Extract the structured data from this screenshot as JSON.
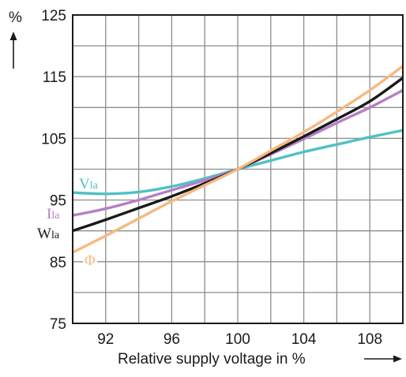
{
  "chart_data": {
    "type": "line",
    "xlabel": "Relative supply voltage in %",
    "ylabel": "%",
    "xlim": [
      90,
      110
    ],
    "ylim": [
      75,
      125
    ],
    "x_ticks": [
      92,
      96,
      100,
      104,
      108
    ],
    "y_ticks": [
      75,
      85,
      95,
      105,
      115,
      125
    ],
    "y_ticks_labeled": [
      75,
      85,
      95,
      105,
      115,
      125
    ],
    "grid": true,
    "series": [
      {
        "name": "Vla",
        "label_main": "V",
        "label_sub": "la",
        "color": "#4fc1c4",
        "x": [
          90,
          92,
          94,
          96,
          98,
          100,
          102,
          104,
          106,
          108,
          110
        ],
        "y": [
          96.2,
          96.0,
          96.3,
          97.2,
          98.5,
          100.0,
          101.4,
          102.8,
          104.0,
          105.2,
          106.3
        ]
      },
      {
        "name": "Ila",
        "label_main": "I",
        "label_sub": "la",
        "color": "#b57fc6",
        "x": [
          90,
          92,
          94,
          96,
          98,
          100,
          102,
          104,
          106,
          108,
          110
        ],
        "y": [
          92.5,
          93.6,
          95.0,
          96.6,
          98.2,
          100.0,
          102.4,
          104.9,
          107.5,
          110.0,
          112.8
        ]
      },
      {
        "name": "Wla",
        "label_main": "W",
        "label_sub": "la",
        "color": "#1a1a1a",
        "x": [
          90,
          92,
          94,
          96,
          98,
          100,
          102,
          104,
          106,
          108,
          110
        ],
        "y": [
          90.0,
          91.8,
          93.7,
          95.6,
          97.7,
          100.0,
          102.6,
          105.3,
          108.1,
          111.0,
          114.8
        ]
      },
      {
        "name": "Φ",
        "label_main": "Φ",
        "label_sub": "",
        "color": "#f5b97f",
        "x": [
          90,
          92,
          94,
          96,
          98,
          100,
          102,
          104,
          106,
          108,
          110
        ],
        "y": [
          86.5,
          89.2,
          92.0,
          94.8,
          97.4,
          100.0,
          103.0,
          106.0,
          109.3,
          112.8,
          116.7
        ]
      }
    ]
  }
}
